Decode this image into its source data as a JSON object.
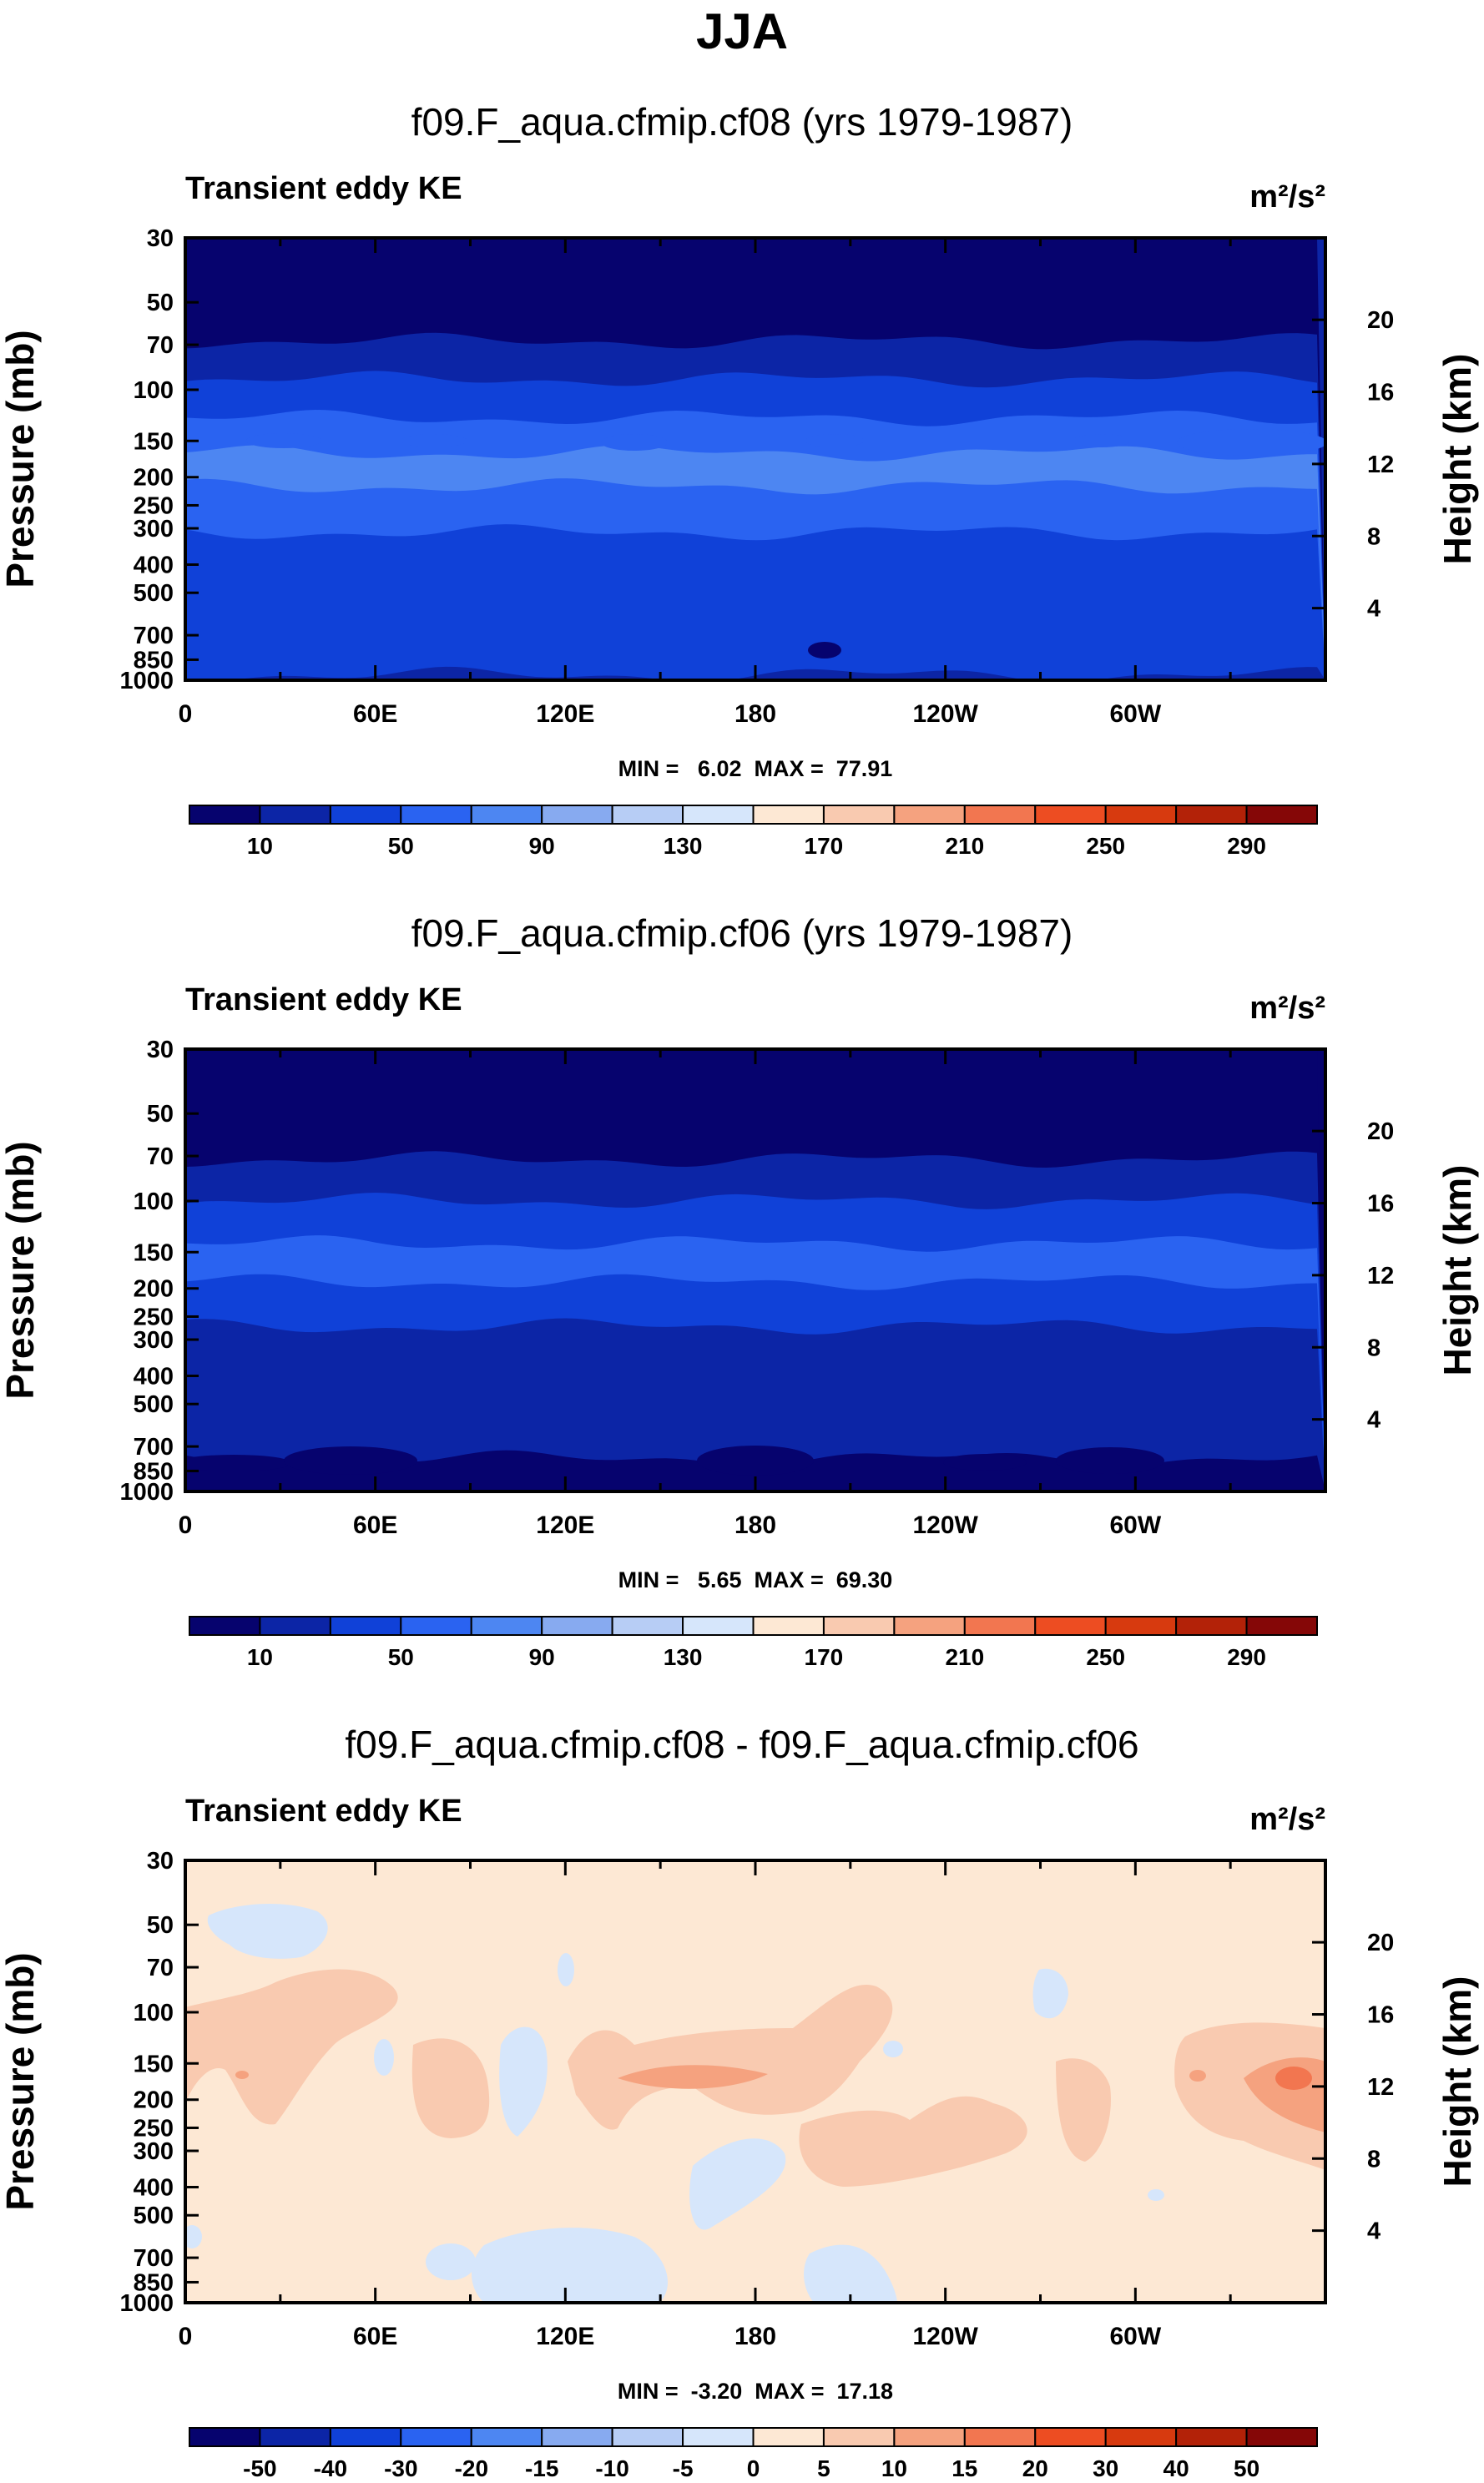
{
  "figure": {
    "title": "JJA"
  },
  "colorbar_main": {
    "colors": [
      "#06036e",
      "#0c25a6",
      "#1041d8",
      "#2a63f1",
      "#4d86f2",
      "#87aaf0",
      "#b7cdf5",
      "#d6e6fb",
      "#fde8d4",
      "#f9cab0",
      "#f5a27f",
      "#f27650",
      "#ed4d22",
      "#d73a0f",
      "#b32208",
      "#850707"
    ],
    "labels": [
      "10",
      "50",
      "90",
      "130",
      "170",
      "210",
      "250",
      "290"
    ]
  },
  "colorbar_diff": {
    "colors": [
      "#06036e",
      "#0c25a6",
      "#1041d8",
      "#2a63f1",
      "#4d86f2",
      "#87aaf0",
      "#b7cdf5",
      "#d6e6fb",
      "#fde8d4",
      "#f9cab0",
      "#f5a27f",
      "#f27650",
      "#ed4d22",
      "#d73a0f",
      "#b32208",
      "#850707"
    ],
    "labels": [
      "-50",
      "-40",
      "-30",
      "-20",
      "-15",
      "-10",
      "-5",
      "0",
      "5",
      "10",
      "15",
      "20",
      "30",
      "40",
      "50"
    ]
  },
  "chart_data": [
    {
      "type": "heatmap",
      "title": "f09.F_aqua.cfmip.cf08 (yrs 1979-1987)",
      "subtitle": "Transient eddy KE",
      "units": "m²/s²",
      "ylabel": "Pressure (mb)",
      "ylabel_right": "Height (km)",
      "x_ticks": [
        "0",
        "60E",
        "120E",
        "180",
        "120W",
        "60W"
      ],
      "y_ticks": [
        "30",
        "50",
        "70",
        "100",
        "150",
        "200",
        "250",
        "300",
        "400",
        "500",
        "700",
        "850",
        "1000"
      ],
      "y_right_ticks": [
        "20",
        "16",
        "12",
        "8",
        "4"
      ],
      "min_max": "MIN =   6.02  MAX =  77.91",
      "band_colors": [
        "#06036e",
        "#0c25a6",
        "#1041d8",
        "#2a63f1",
        "#4d86f2",
        "#2a63f1",
        "#1041d8",
        "#0c25a6"
      ],
      "band_tops_mb": [
        30,
        68,
        92,
        125,
        165,
        215,
        310,
        960
      ]
    },
    {
      "type": "heatmap",
      "title": "f09.F_aqua.cfmip.cf06 (yrs 1979-1987)",
      "subtitle": "Transient eddy KE",
      "units": "m²/s²",
      "ylabel": "Pressure (mb)",
      "ylabel_right": "Height (km)",
      "x_ticks": [
        "0",
        "60E",
        "120E",
        "180",
        "120W",
        "60W"
      ],
      "y_ticks": [
        "30",
        "50",
        "70",
        "100",
        "150",
        "200",
        "250",
        "300",
        "400",
        "500",
        "700",
        "850",
        "1000"
      ],
      "y_right_ticks": [
        "20",
        "16",
        "12",
        "8",
        "4"
      ],
      "min_max": "MIN =   5.65  MAX =  69.30",
      "band_colors": [
        "#06036e",
        "#0c25a6",
        "#1041d8",
        "#2a63f1",
        "#1041d8",
        "#0c25a6",
        "#06036e"
      ],
      "band_tops_mb": [
        30,
        72,
        100,
        140,
        190,
        270,
        770
      ]
    },
    {
      "type": "heatmap",
      "title": "f09.F_aqua.cfmip.cf08 - f09.F_aqua.cfmip.cf06",
      "subtitle": "Transient eddy KE",
      "units": "m²/s²",
      "ylabel": "Pressure (mb)",
      "ylabel_right": "Height (km)",
      "x_ticks": [
        "0",
        "60E",
        "120E",
        "180",
        "120W",
        "60W"
      ],
      "y_ticks": [
        "30",
        "50",
        "70",
        "100",
        "150",
        "200",
        "250",
        "300",
        "400",
        "500",
        "700",
        "850",
        "1000"
      ],
      "y_right_ticks": [
        "20",
        "16",
        "12",
        "8",
        "4"
      ],
      "min_max": "MIN =  -3.20  MAX =  17.18",
      "background_color": "#fde8d4"
    }
  ]
}
